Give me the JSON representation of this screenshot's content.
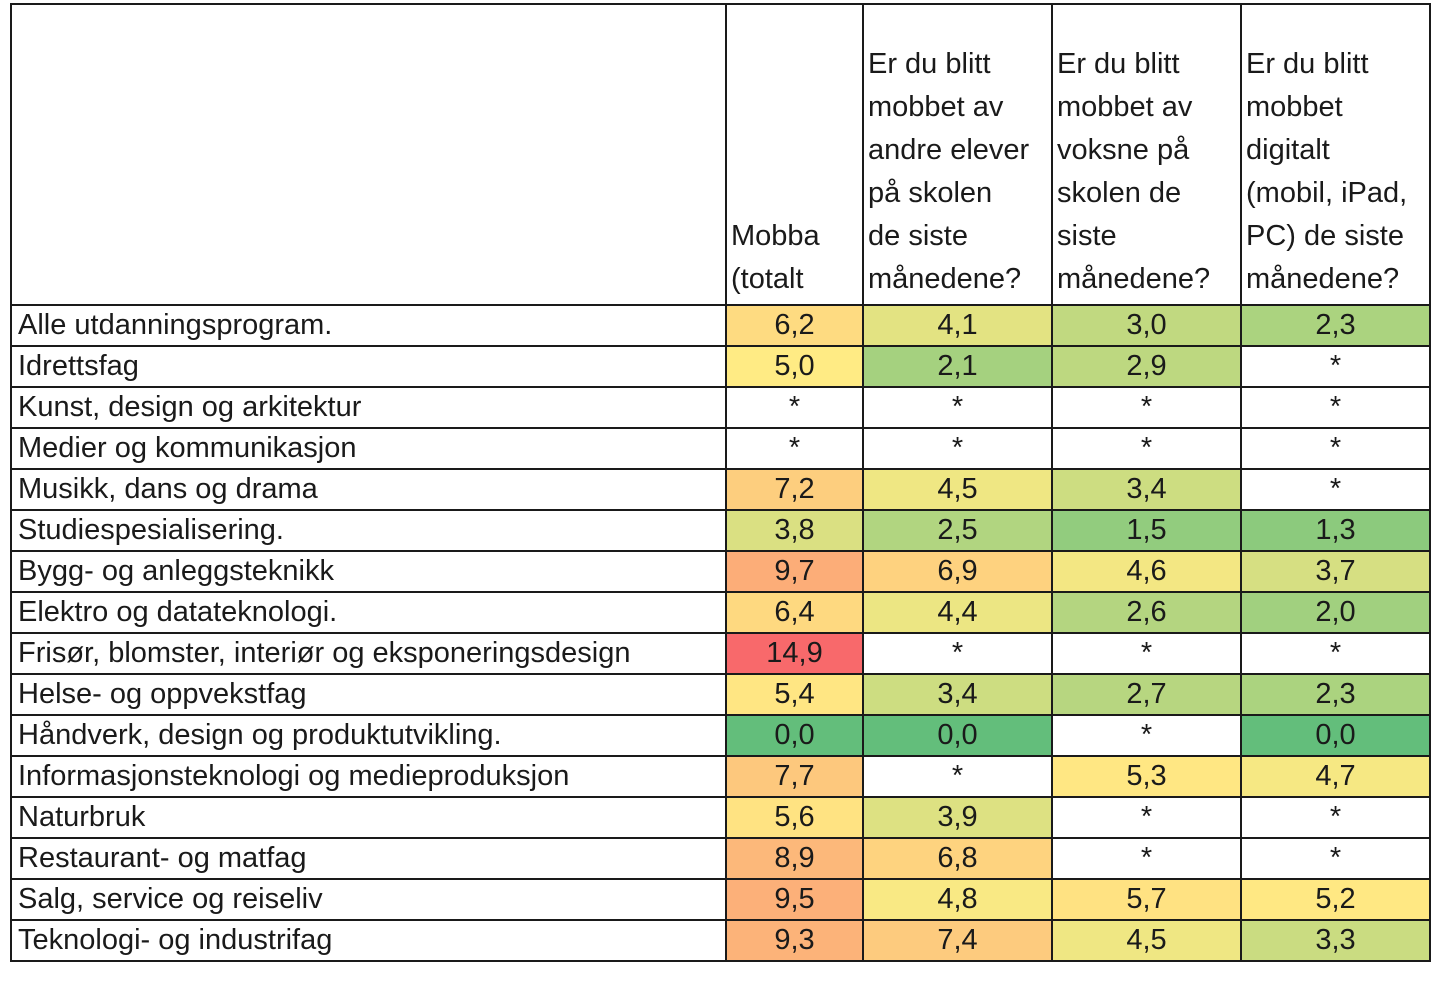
{
  "chart_data": {
    "type": "table",
    "columns": [
      "",
      "Mobba\n(totalt",
      "Er du blitt\nmobbet av\nandre elever\npå skolen\nde siste\nmånedene?",
      "Er du blitt\nmobbet av\nvoksne på\nskolen de\nsiste\nmånedene?",
      "Er du blitt\nmobbet\ndigitalt\n(mobil, iPad,\nPC) de siste\nmånedene?"
    ],
    "rows": [
      {
        "label": "Alle utdanningsprogram.",
        "values": [
          "6,2",
          "4,1",
          "3,0",
          "2,3"
        ]
      },
      {
        "label": "Idrettsfag",
        "values": [
          "5,0",
          "2,1",
          "2,9",
          "*"
        ]
      },
      {
        "label": "Kunst, design og arkitektur",
        "values": [
          "*",
          "*",
          "*",
          "*"
        ]
      },
      {
        "label": "Medier og kommunikasjon",
        "values": [
          "*",
          "*",
          "*",
          "*"
        ]
      },
      {
        "label": "Musikk, dans og drama",
        "values": [
          "7,2",
          "4,5",
          "3,4",
          "*"
        ]
      },
      {
        "label": "Studiespesialisering.",
        "values": [
          "3,8",
          "2,5",
          "1,5",
          "1,3"
        ]
      },
      {
        "label": "Bygg- og anleggsteknikk",
        "values": [
          "9,7",
          "6,9",
          "4,6",
          "3,7"
        ]
      },
      {
        "label": "Elektro og datateknologi.",
        "values": [
          "6,4",
          "4,4",
          "2,6",
          "2,0"
        ]
      },
      {
        "label": "Frisør, blomster, interiør og eksponeringsdesign",
        "values": [
          "14,9",
          "*",
          "*",
          "*"
        ]
      },
      {
        "label": "Helse- og oppvekstfag",
        "values": [
          "5,4",
          "3,4",
          "2,7",
          "2,3"
        ]
      },
      {
        "label": "Håndverk, design og produktutvikling.",
        "values": [
          "0,0",
          "0,0",
          "*",
          "0,0"
        ]
      },
      {
        "label": "Informasjonsteknologi og medieproduksjon",
        "values": [
          "7,7",
          "*",
          "5,3",
          "4,7"
        ]
      },
      {
        "label": "Naturbruk",
        "values": [
          "5,6",
          "3,9",
          "*",
          "*"
        ]
      },
      {
        "label": "Restaurant- og matfag",
        "values": [
          "8,9",
          "6,8",
          "*",
          "*"
        ]
      },
      {
        "label": "Salg, service og reiseliv",
        "values": [
          "9,5",
          "4,8",
          "5,7",
          "5,2"
        ]
      },
      {
        "label": "Teknologi- og industrifag",
        "values": [
          "9,3",
          "7,4",
          "4,5",
          "3,3"
        ]
      }
    ],
    "color_scale": {
      "type": "diverging",
      "low": "#63be7b",
      "mid": "#ffeb84",
      "high": "#f8696b",
      "domain": [
        0.0,
        5.0,
        14.9
      ],
      "missing_value": "*",
      "missing_color": "#ffffff"
    }
  }
}
